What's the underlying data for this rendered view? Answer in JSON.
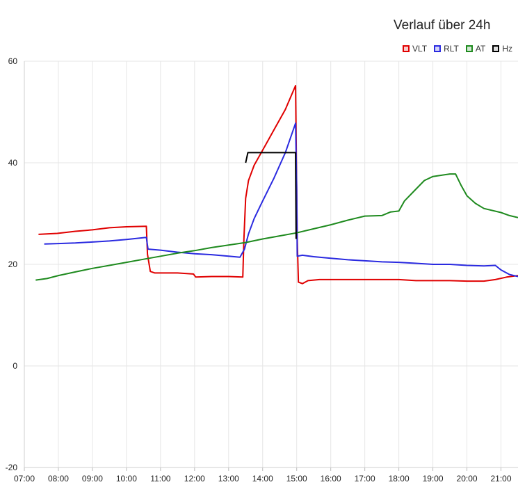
{
  "chart_data": {
    "type": "line",
    "title": "Verlauf über 24h",
    "ylim": [
      -20,
      60
    ],
    "yticks": [
      -20,
      0,
      20,
      40,
      60
    ],
    "x_range": [
      "07:00",
      "21:30"
    ],
    "xticks": [
      "07:00",
      "08:00",
      "09:00",
      "10:00",
      "11:00",
      "12:00",
      "13:00",
      "14:00",
      "15:00",
      "16:00",
      "17:00",
      "18:00",
      "19:00",
      "20:00",
      "21:00"
    ],
    "grid": true,
    "legend_position": "top-right",
    "series": [
      {
        "name": "VLT",
        "color": "#e00000",
        "points": [
          [
            "07:25",
            25.9
          ],
          [
            "07:58",
            26.1
          ],
          [
            "08:30",
            26.5
          ],
          [
            "09:00",
            26.8
          ],
          [
            "09:30",
            27.2
          ],
          [
            "10:00",
            27.4
          ],
          [
            "10:35",
            27.5
          ],
          [
            "10:37",
            22.0
          ],
          [
            "10:42",
            18.6
          ],
          [
            "10:50",
            18.3
          ],
          [
            "11:30",
            18.3
          ],
          [
            "11:58",
            18.1
          ],
          [
            "12:02",
            17.5
          ],
          [
            "12:30",
            17.6
          ],
          [
            "13:00",
            17.6
          ],
          [
            "13:25",
            17.5
          ],
          [
            "13:27",
            25.0
          ],
          [
            "13:30",
            33.0
          ],
          [
            "13:35",
            36.5
          ],
          [
            "13:45",
            39.5
          ],
          [
            "14:00",
            42.5
          ],
          [
            "14:20",
            46.5
          ],
          [
            "14:40",
            50.5
          ],
          [
            "14:58",
            55.2
          ],
          [
            "14:59",
            45.0
          ],
          [
            "15:01",
            25.0
          ],
          [
            "15:03",
            16.5
          ],
          [
            "15:10",
            16.2
          ],
          [
            "15:20",
            16.8
          ],
          [
            "15:40",
            17.0
          ],
          [
            "16:00",
            17.0
          ],
          [
            "16:30",
            17.0
          ],
          [
            "17:00",
            17.0
          ],
          [
            "17:30",
            17.0
          ],
          [
            "18:00",
            17.0
          ],
          [
            "18:30",
            16.8
          ],
          [
            "19:00",
            16.8
          ],
          [
            "19:30",
            16.8
          ],
          [
            "20:00",
            16.7
          ],
          [
            "20:30",
            16.7
          ],
          [
            "20:50",
            17.0
          ],
          [
            "21:10",
            17.5
          ],
          [
            "21:30",
            17.8
          ]
        ]
      },
      {
        "name": "RLT",
        "color": "#2a2ae0",
        "points": [
          [
            "07:35",
            24.0
          ],
          [
            "08:00",
            24.1
          ],
          [
            "08:30",
            24.2
          ],
          [
            "09:00",
            24.4
          ],
          [
            "09:30",
            24.6
          ],
          [
            "10:00",
            24.9
          ],
          [
            "10:35",
            25.3
          ],
          [
            "10:38",
            23.0
          ],
          [
            "11:00",
            22.8
          ],
          [
            "11:30",
            22.4
          ],
          [
            "12:00",
            22.1
          ],
          [
            "12:30",
            21.9
          ],
          [
            "13:00",
            21.6
          ],
          [
            "13:20",
            21.4
          ],
          [
            "13:28",
            23.0
          ],
          [
            "13:35",
            26.0
          ],
          [
            "13:45",
            29.0
          ],
          [
            "14:00",
            32.5
          ],
          [
            "14:20",
            37.0
          ],
          [
            "14:40",
            42.0
          ],
          [
            "14:58",
            47.8
          ],
          [
            "15:00",
            35.0
          ],
          [
            "15:01",
            21.6
          ],
          [
            "15:10",
            21.8
          ],
          [
            "15:30",
            21.5
          ],
          [
            "16:00",
            21.2
          ],
          [
            "16:30",
            20.9
          ],
          [
            "17:00",
            20.7
          ],
          [
            "17:30",
            20.5
          ],
          [
            "18:00",
            20.4
          ],
          [
            "18:30",
            20.2
          ],
          [
            "19:00",
            20.0
          ],
          [
            "19:30",
            20.0
          ],
          [
            "20:00",
            19.8
          ],
          [
            "20:30",
            19.7
          ],
          [
            "20:50",
            19.8
          ],
          [
            "21:00",
            18.9
          ],
          [
            "21:15",
            18.0
          ],
          [
            "21:30",
            17.6
          ]
        ]
      },
      {
        "name": "AT",
        "color": "#1e8a1e",
        "points": [
          [
            "07:20",
            16.9
          ],
          [
            "07:40",
            17.2
          ],
          [
            "08:00",
            17.8
          ],
          [
            "08:30",
            18.5
          ],
          [
            "09:00",
            19.2
          ],
          [
            "09:30",
            19.8
          ],
          [
            "10:00",
            20.4
          ],
          [
            "10:30",
            21.0
          ],
          [
            "11:00",
            21.6
          ],
          [
            "11:30",
            22.2
          ],
          [
            "12:00",
            22.7
          ],
          [
            "12:30",
            23.3
          ],
          [
            "13:00",
            23.8
          ],
          [
            "13:30",
            24.3
          ],
          [
            "14:00",
            25.0
          ],
          [
            "14:30",
            25.6
          ],
          [
            "15:00",
            26.2
          ],
          [
            "15:30",
            27.0
          ],
          [
            "16:00",
            27.8
          ],
          [
            "16:30",
            28.7
          ],
          [
            "17:00",
            29.5
          ],
          [
            "17:30",
            29.6
          ],
          [
            "17:45",
            30.3
          ],
          [
            "18:00",
            30.5
          ],
          [
            "18:10",
            32.5
          ],
          [
            "18:30",
            34.8
          ],
          [
            "18:45",
            36.5
          ],
          [
            "19:00",
            37.3
          ],
          [
            "19:30",
            37.8
          ],
          [
            "19:40",
            37.8
          ],
          [
            "19:50",
            35.5
          ],
          [
            "20:00",
            33.5
          ],
          [
            "20:15",
            32.0
          ],
          [
            "20:30",
            31.0
          ],
          [
            "21:00",
            30.2
          ],
          [
            "21:15",
            29.6
          ],
          [
            "21:30",
            29.2
          ]
        ]
      },
      {
        "name": "Hz",
        "color": "#000000",
        "points": [
          [
            "13:30",
            40.0
          ],
          [
            "13:32",
            41.0
          ],
          [
            "13:34",
            42.0
          ],
          [
            "14:00",
            42.0
          ],
          [
            "14:30",
            42.0
          ],
          [
            "14:58",
            42.0
          ],
          [
            "14:59",
            25.0
          ]
        ]
      }
    ]
  }
}
